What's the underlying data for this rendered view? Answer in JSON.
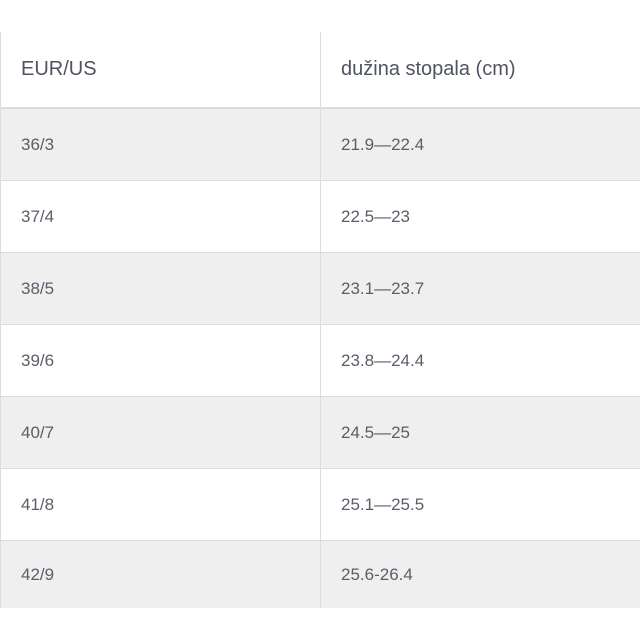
{
  "table": {
    "headers": [
      "EUR/US",
      "dužina stopala (cm)"
    ],
    "rows": [
      [
        "36/3",
        "21.9—22.4"
      ],
      [
        "37/4",
        "22.5—23"
      ],
      [
        "38/5",
        "23.1—23.7"
      ],
      [
        "39/6",
        "23.8—24.4"
      ],
      [
        "40/7",
        "24.5—25"
      ],
      [
        "41/8",
        "25.1—25.5"
      ],
      [
        "42/9",
        "25.6-26.4"
      ]
    ]
  },
  "colors": {
    "row_shade": "#efeff0",
    "text": "#545965",
    "border": "#dcdcdc"
  }
}
